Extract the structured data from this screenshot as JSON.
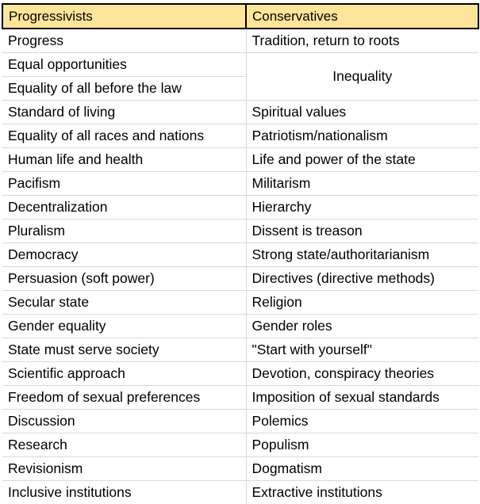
{
  "headers": {
    "left": "Progressivists",
    "right": "Conservatives"
  },
  "rows": [
    {
      "left": "Progress",
      "right": "Tradition, return to roots"
    },
    {
      "left": "Equal opportunities",
      "right": "Inequality"
    },
    {
      "left": "Equality of all before the law"
    },
    {
      "left": "Standard of living",
      "right": "Spiritual values"
    },
    {
      "left": "Equality of all races and nations",
      "right": "Patriotism/nationalism"
    },
    {
      "left": "Human life and health",
      "right": "Life and power of the state"
    },
    {
      "left": "Pacifism",
      "right": "Militarism"
    },
    {
      "left": "Decentralization",
      "right": "Hierarchy"
    },
    {
      "left": "Pluralism",
      "right": "Dissent is treason"
    },
    {
      "left": "Democracy",
      "right": "Strong state/authoritarianism"
    },
    {
      "left": "Persuasion (soft power)",
      "right": "Directives (directive methods)"
    },
    {
      "left": "Secular state",
      "right": "Religion"
    },
    {
      "left": "Gender equality",
      "right": "Gender roles"
    },
    {
      "left": "State must serve society",
      "right": "\"Start with yourself\""
    },
    {
      "left": "Scientific approach",
      "right": "Devotion, conspiracy theories"
    },
    {
      "left": "Freedom of sexual preferences",
      "right": "Imposition of sexual standards"
    },
    {
      "left": "Discussion",
      "right": "Polemics"
    },
    {
      "left": "Research",
      "right": "Populism"
    },
    {
      "left": "Revisionism",
      "right": "Dogmatism"
    },
    {
      "left": "Inclusive institutions",
      "right": "Extractive institutions"
    }
  ]
}
